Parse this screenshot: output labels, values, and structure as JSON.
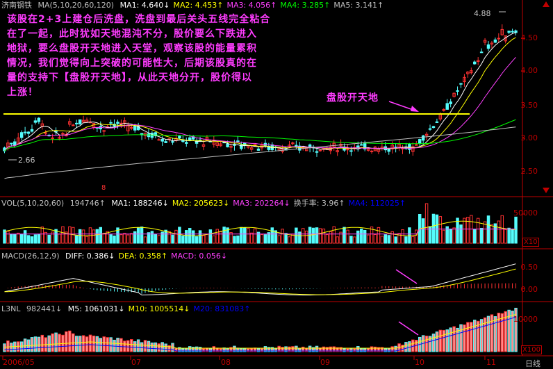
{
  "main": {
    "stock": "济南钢铁",
    "ma_label": "MA(5,10,20,60,120)",
    "ma": [
      {
        "label": "MA1:",
        "value": "4.640↓",
        "color": "#ffffff"
      },
      {
        "label": "MA2:",
        "value": "4.453↑",
        "color": "#ffff00"
      },
      {
        "label": "MA3:",
        "value": "4.056↑",
        "color": "#ff40ff"
      },
      {
        "label": "MA4:",
        "value": "3.285↑",
        "color": "#00ff00"
      },
      {
        "label": "MA5:",
        "value": "3.141↑",
        "color": "#c0c0c0"
      }
    ],
    "annotation_lines": [
      "该股在2+3上建仓后洗盘，洗盘到最后关头五线完全粘合",
      "在了一起，此时犹如天地混沌不分，股价要么下跌进入",
      "地狱，要么盘股开天地进入天堂，观察该股的能量累积",
      "情况，我们觉得向上突破的可能性大，后期该股真的在",
      "量的支持下【盘股开天地】，从此天地分开，股价得以",
      "上涨！"
    ],
    "callout": "盘股开天地",
    "high_label": "4.88",
    "low_label": "2.66",
    "marker": "8",
    "y_ticks": [
      "4.50",
      "4.00",
      "3.50",
      "3.00",
      "2.50"
    ]
  },
  "vol": {
    "label": "VOL(5,10,20,60)",
    "value": "194746↑",
    "ma": [
      {
        "label": "MA1:",
        "value": "188246↓",
        "color": "#ffffff"
      },
      {
        "label": "MA2:",
        "value": "205623↓",
        "color": "#ffff00"
      },
      {
        "label": "MA3:",
        "value": "202264↓",
        "color": "#ff40ff"
      },
      {
        "label": "换手率:",
        "value": "3.96↑",
        "color": "#c0c0c0"
      },
      {
        "label": "MA4:",
        "value": "112025↑",
        "color": "#0000ff"
      }
    ],
    "y_tick": "50000",
    "scale": "X10"
  },
  "macd": {
    "label": "MACD(26,12,9)",
    "items": [
      {
        "label": "DIFF:",
        "value": "0.386↓",
        "color": "#ffffff"
      },
      {
        "label": "DEA:",
        "value": "0.358↑",
        "color": "#ffff00"
      },
      {
        "label": "MACD:",
        "value": "0.056↓",
        "color": "#ff40ff"
      }
    ],
    "y_ticks": [
      "0.50",
      "0.00"
    ]
  },
  "l3nl": {
    "label": "L3NL",
    "value": "982441↓",
    "items": [
      {
        "label": "M5:",
        "value": "1061031↓",
        "color": "#ffffff"
      },
      {
        "label": "M10:",
        "value": "1005514↓",
        "color": "#ffff00"
      },
      {
        "label": "M20:",
        "value": "831083↑",
        "color": "#0000ff"
      }
    ],
    "y_tick": "10000",
    "scale": "X100"
  },
  "dates": [
    "2006/05",
    "07",
    "08",
    "09",
    "10",
    "11"
  ],
  "period": "日线",
  "colors": {
    "up": "#ff3232",
    "down": "#54fcfc",
    "axis": "#c00000",
    "yellow_line": "#ffff00"
  }
}
